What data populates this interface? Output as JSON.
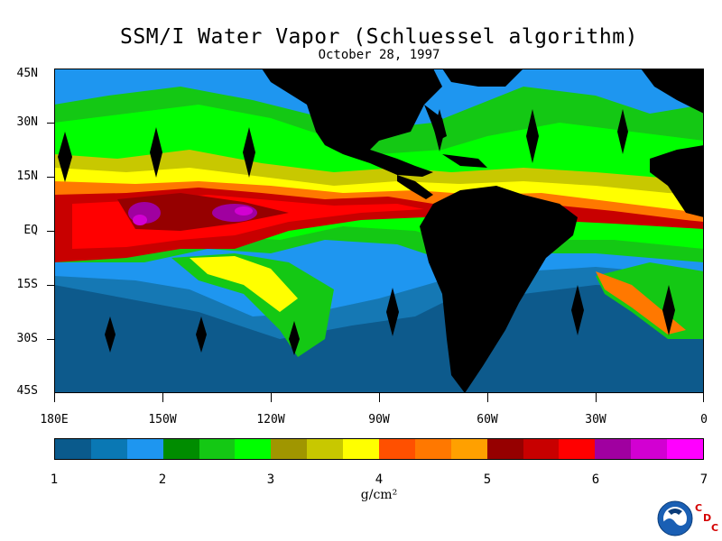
{
  "title": "SSM/I Water Vapor (Schluessel algorithm)",
  "date": "October 28, 1997",
  "map": {
    "lat_labels": [
      "45N",
      "30N",
      "15N",
      "EQ",
      "15S",
      "30S",
      "45S"
    ],
    "lon_labels": [
      "180E",
      "150W",
      "120W",
      "90W",
      "60W",
      "30W",
      "0"
    ]
  },
  "colorbar": {
    "labels": [
      "1",
      "2",
      "3",
      "4",
      "5",
      "6",
      "7"
    ],
    "units": "g/cm²",
    "colors": [
      "#0a5a8c",
      "#0a78b4",
      "#1e96f0",
      "#008c00",
      "#14c814",
      "#00ff00",
      "#a09600",
      "#c8c800",
      "#ffff00",
      "#ff5000",
      "#ff7800",
      "#ffa000",
      "#960000",
      "#c80000",
      "#ff0000",
      "#a000a0",
      "#d200d2",
      "#ff00ff"
    ]
  },
  "logo": {
    "name": "NOAA",
    "letters": [
      "C",
      "D",
      "C"
    ]
  }
}
